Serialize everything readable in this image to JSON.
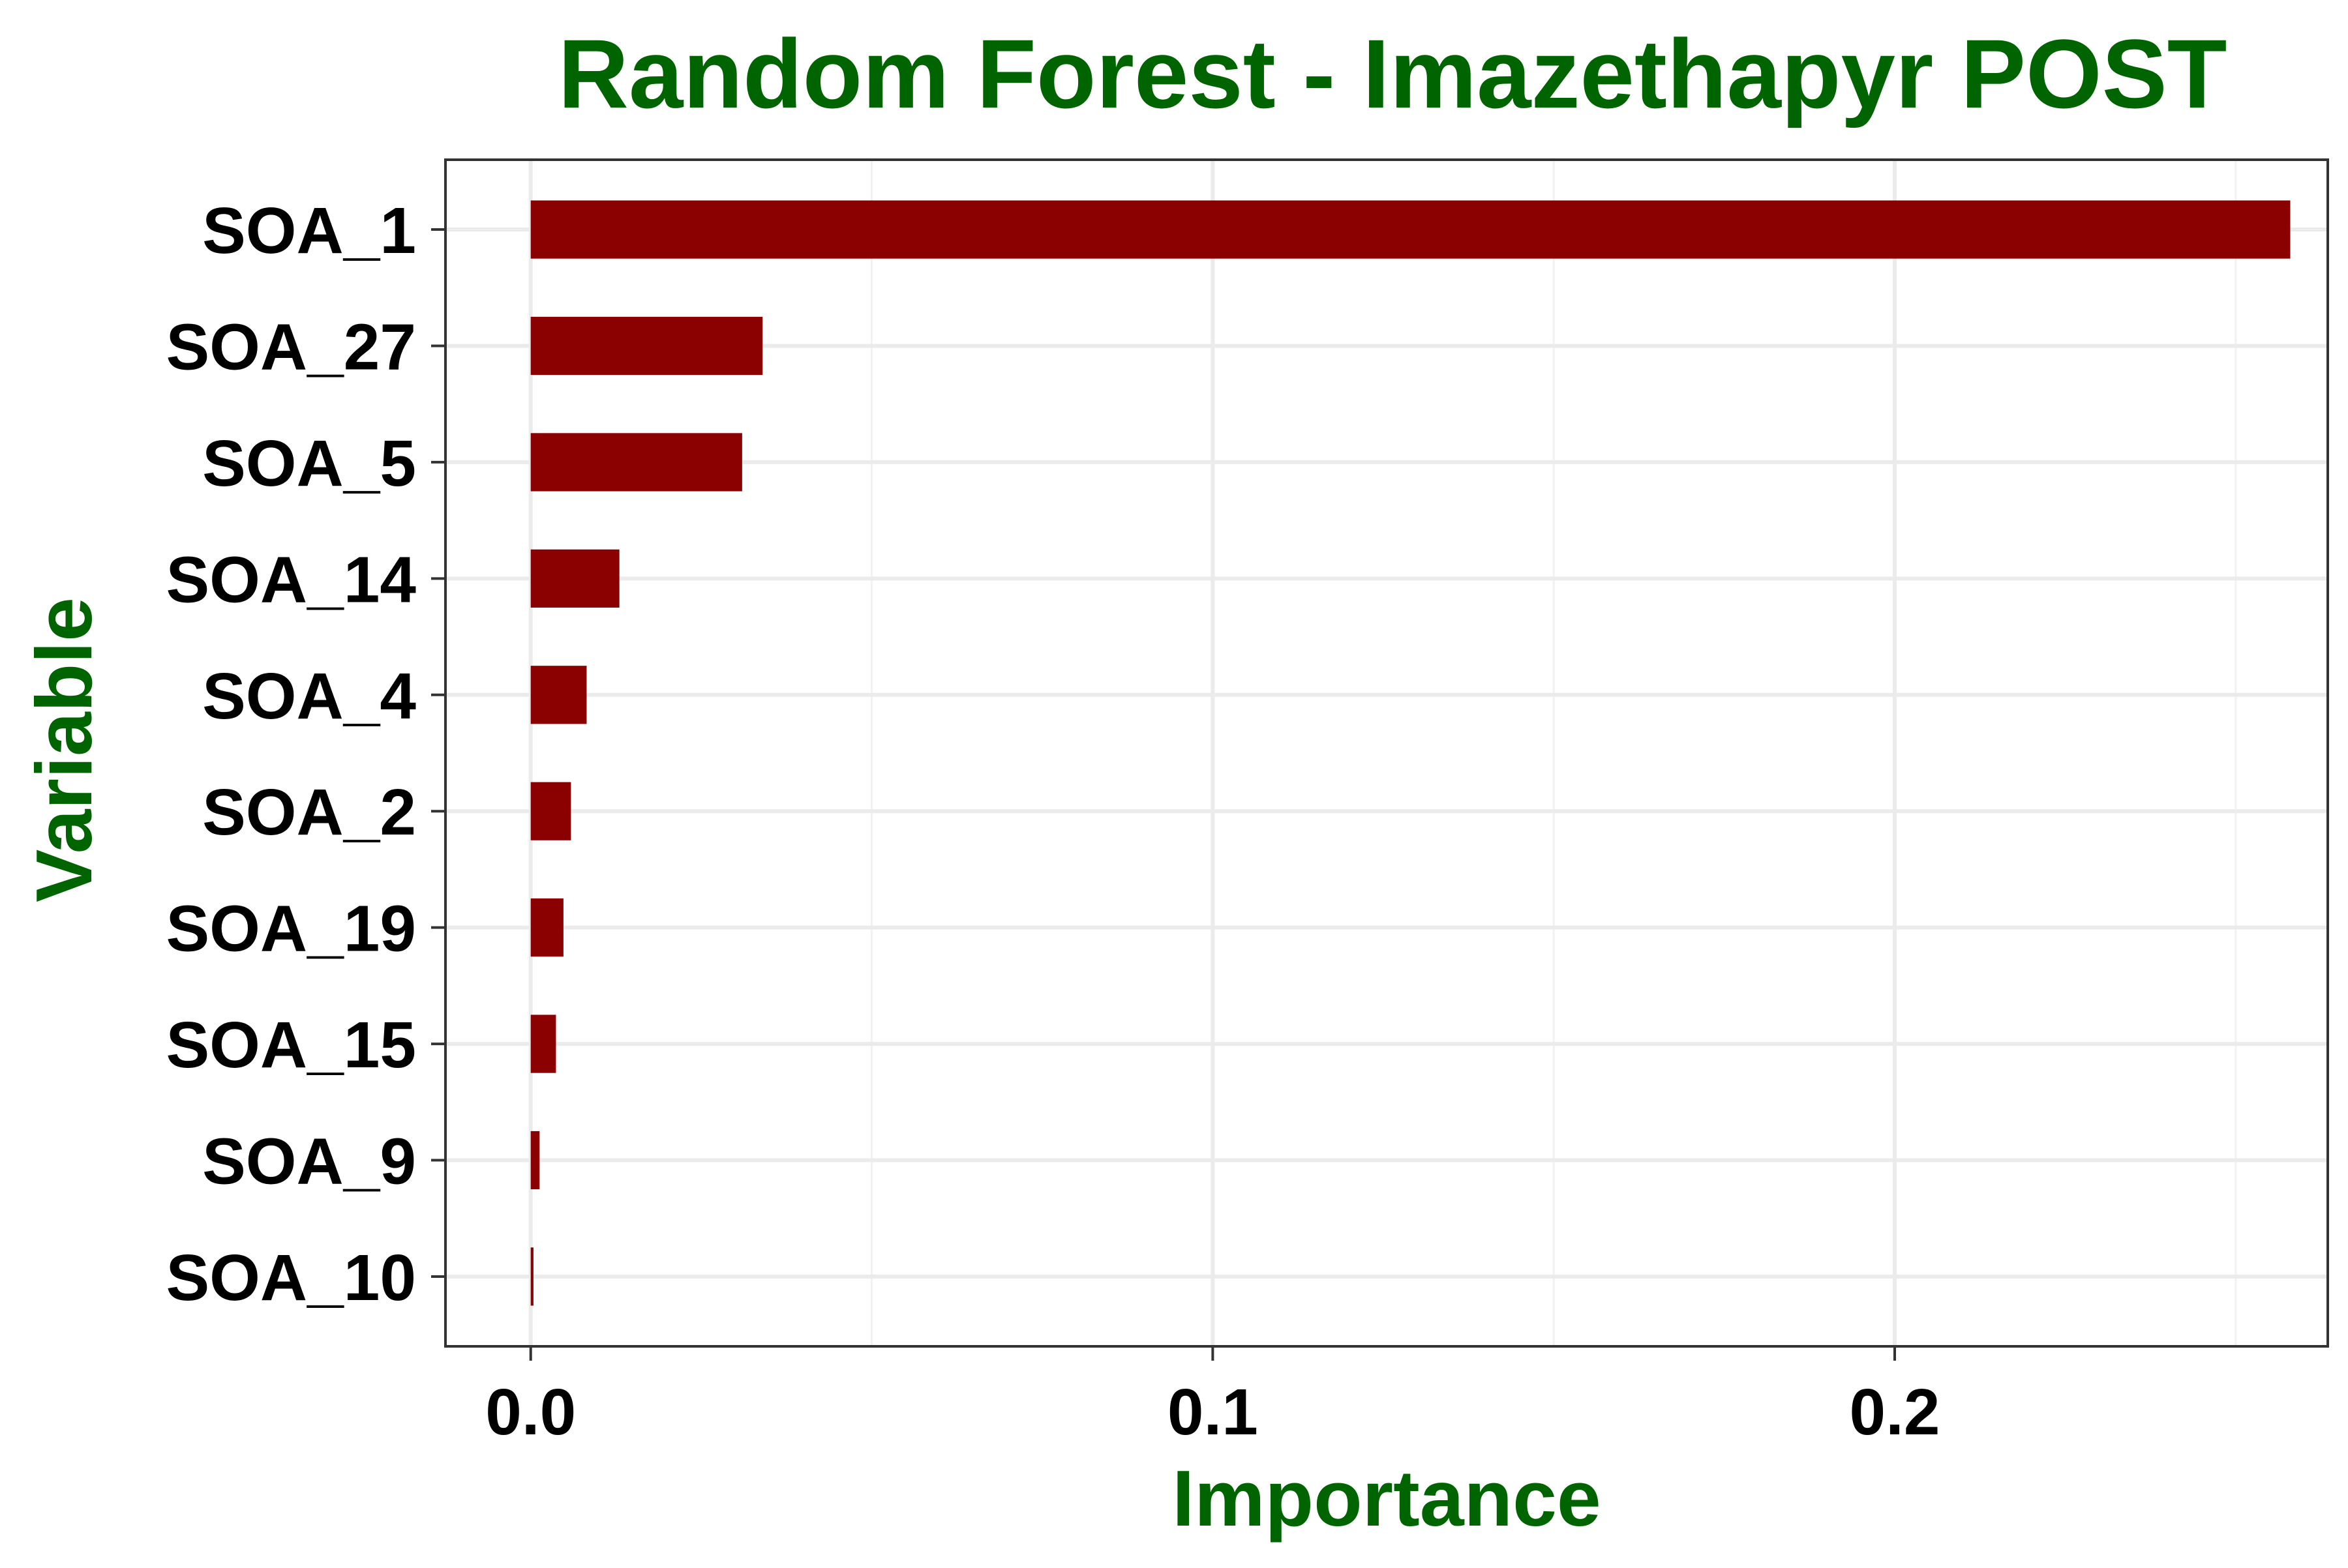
{
  "chart_data": {
    "type": "bar",
    "orientation": "horizontal",
    "title": "Random Forest - Imazethapyr POST",
    "xlabel": "Importance",
    "ylabel": "Variable",
    "categories": [
      "SOA_1",
      "SOA_27",
      "SOA_5",
      "SOA_14",
      "SOA_4",
      "SOA_2",
      "SOA_19",
      "SOA_15",
      "SOA_9",
      "SOA_10"
    ],
    "values": [
      0.258,
      0.034,
      0.031,
      0.013,
      0.0082,
      0.0059,
      0.0048,
      0.0037,
      0.0013,
      0.0004
    ],
    "xlim": [
      -0.0125,
      0.2635
    ],
    "xticks": [
      "0.0",
      "0.1",
      "0.2"
    ],
    "xtick_values": [
      0,
      0.1,
      0.2
    ],
    "x_minor_gridlines": [
      0.05,
      0.15,
      0.25
    ],
    "grid": true,
    "legend": "none",
    "colors": {
      "bar": "#8B0000",
      "title": "#006400",
      "axis_title": "#006400",
      "tick_text": "#000000",
      "grid_major": "#EBEBEB",
      "grid_minor": "#F2F2F2",
      "panel_border": "#333333"
    }
  }
}
